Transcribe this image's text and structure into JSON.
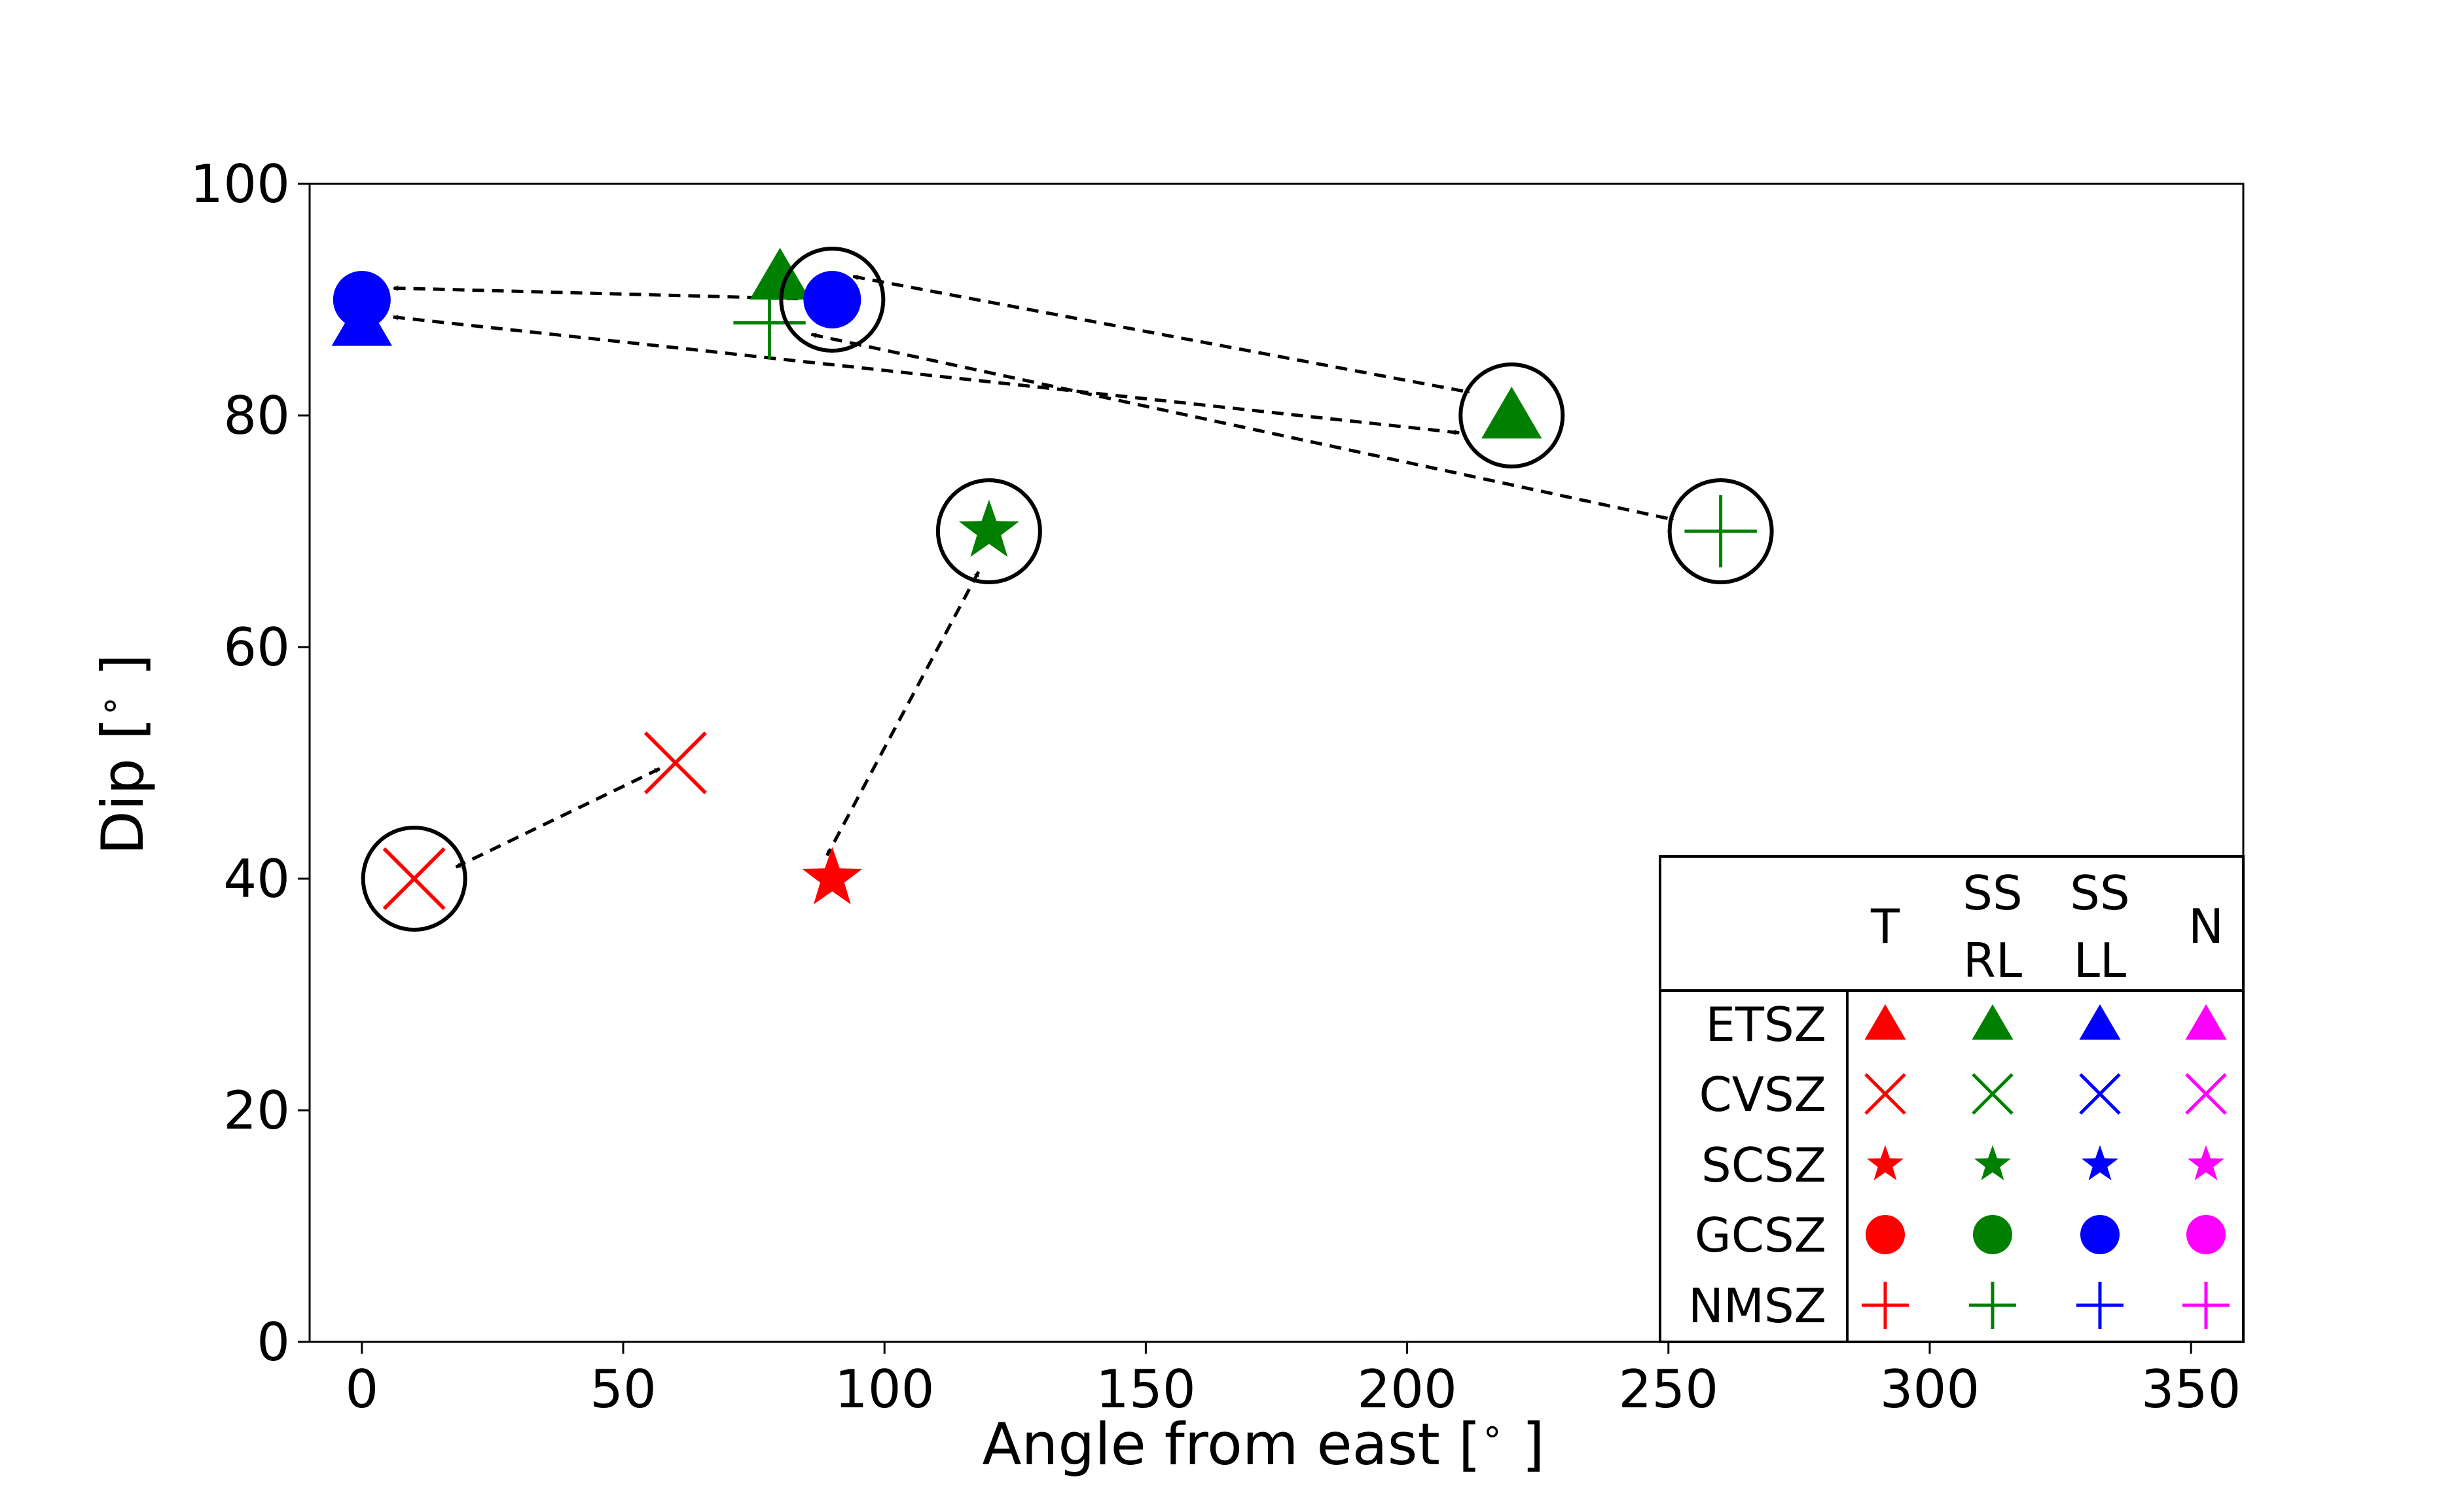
{
  "chart_data": {
    "type": "scatter",
    "xlabel": "Angle from east [$^\\circ$]",
    "xlabel_main": "Angle from east [",
    "xlabel_deg": "∘",
    "xlabel_end": " ]",
    "ylabel_main": "Dip [",
    "ylabel_deg": "∘",
    "ylabel_end": " ]",
    "xlim": [
      -10,
      360
    ],
    "ylim": [
      0,
      100
    ],
    "xticks": [
      0,
      50,
      100,
      150,
      200,
      250,
      300,
      350
    ],
    "yticks": [
      0,
      20,
      40,
      60,
      80,
      100
    ],
    "grid": false,
    "colors": {
      "T": "#ff0000",
      "SS_RL": "#008000",
      "SS_LL": "#0000ff",
      "N": "#ff00ff"
    },
    "points": [
      {
        "zone": "GCSZ",
        "mechanism": "SS LL",
        "marker": "circle",
        "color": "#0000ff",
        "x": 0,
        "y": 90,
        "circled": false
      },
      {
        "zone": "ETSZ",
        "mechanism": "SS LL",
        "marker": "triangle",
        "color": "#0000ff",
        "x": 0,
        "y": 88,
        "circled": false
      },
      {
        "zone": "ETSZ",
        "mechanism": "SS RL",
        "marker": "triangle",
        "color": "#008000",
        "x": 80,
        "y": 92,
        "circled": false
      },
      {
        "zone": "NMSZ",
        "mechanism": "SS RL",
        "marker": "plus",
        "color": "#008000",
        "x": 78,
        "y": 88,
        "circled": false
      },
      {
        "zone": "GCSZ",
        "mechanism": "SS LL",
        "marker": "circle",
        "color": "#0000ff",
        "x": 90,
        "y": 90,
        "circled": true
      },
      {
        "zone": "ETSZ",
        "mechanism": "SS RL",
        "marker": "triangle",
        "color": "#008000",
        "x": 220,
        "y": 80,
        "circled": true
      },
      {
        "zone": "NMSZ",
        "mechanism": "SS RL",
        "marker": "plus",
        "color": "#008000",
        "x": 260,
        "y": 70,
        "circled": true
      },
      {
        "zone": "SCSZ",
        "mechanism": "SS RL",
        "marker": "star",
        "color": "#008000",
        "x": 120,
        "y": 70,
        "circled": true
      },
      {
        "zone": "CVSZ",
        "mechanism": "T",
        "marker": "x",
        "color": "#ff0000",
        "x": 60,
        "y": 50,
        "circled": false
      },
      {
        "zone": "CVSZ",
        "mechanism": "T",
        "marker": "x",
        "color": "#ff0000",
        "x": 10,
        "y": 40,
        "circled": true
      },
      {
        "zone": "SCSZ",
        "mechanism": "T",
        "marker": "star",
        "color": "#ff0000",
        "x": 90,
        "y": 40,
        "circled": false
      }
    ],
    "arrows": [
      {
        "from": [
          91,
          90
        ],
        "to": [
          6,
          91
        ]
      },
      {
        "from": [
          94,
          92
        ],
        "to": [
          212,
          82
        ]
      },
      {
        "from": [
          6,
          88.5
        ],
        "to": [
          210,
          78.5
        ]
      },
      {
        "from": [
          86,
          87
        ],
        "to": [
          251,
          71
        ]
      },
      {
        "from": [
          57,
          49.5
        ],
        "to": [
          18,
          41
        ]
      },
      {
        "from": [
          118,
          66.5
        ],
        "to": [
          89,
          42
        ]
      }
    ],
    "legend": {
      "placement": "lower-right",
      "columns": [
        {
          "line1": "T",
          "line2": ""
        },
        {
          "line1": "SS",
          "line2": "RL"
        },
        {
          "line1": "SS",
          "line2": "LL"
        },
        {
          "line1": "N",
          "line2": ""
        }
      ],
      "column_colors": [
        "#ff0000",
        "#008000",
        "#0000ff",
        "#ff00ff"
      ],
      "rows": [
        {
          "label": "ETSZ",
          "marker": "triangle"
        },
        {
          "label": "CVSZ",
          "marker": "x"
        },
        {
          "label": "SCSZ",
          "marker": "star"
        },
        {
          "label": "GCSZ",
          "marker": "circle"
        },
        {
          "label": "NMSZ",
          "marker": "plus"
        }
      ]
    }
  }
}
